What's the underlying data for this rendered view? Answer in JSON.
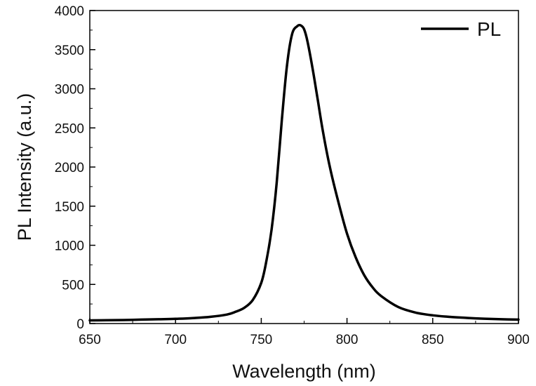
{
  "chart_data": {
    "type": "line",
    "title": "",
    "xlabel": "Wavelength (nm)",
    "ylabel": "PL Intensity (a.u.)",
    "xlim": [
      650,
      900
    ],
    "ylim": [
      0,
      4000
    ],
    "x_ticks": [
      650,
      700,
      750,
      800,
      850,
      900
    ],
    "y_ticks": [
      0,
      500,
      1000,
      1500,
      2000,
      2500,
      3000,
      3500,
      4000
    ],
    "grid": false,
    "legend": {
      "position": "top-right",
      "entries": [
        "PL"
      ]
    },
    "line_color": "#000000",
    "series": [
      {
        "name": "PL",
        "x": [
          650,
          660,
          670,
          680,
          690,
          700,
          710,
          720,
          730,
          735,
          740,
          745,
          750,
          753,
          756,
          759,
          762,
          765,
          768,
          771,
          773,
          775,
          777,
          780,
          783,
          786,
          790,
          795,
          800,
          805,
          810,
          815,
          820,
          830,
          840,
          850,
          860,
          870,
          880,
          890,
          900
        ],
        "y": [
          40,
          42,
          45,
          50,
          55,
          60,
          70,
          85,
          115,
          150,
          200,
          300,
          520,
          800,
          1200,
          1800,
          2600,
          3300,
          3700,
          3800,
          3810,
          3760,
          3600,
          3250,
          2850,
          2450,
          2000,
          1550,
          1150,
          850,
          620,
          460,
          350,
          210,
          140,
          105,
          85,
          72,
          62,
          55,
          50
        ]
      }
    ]
  }
}
